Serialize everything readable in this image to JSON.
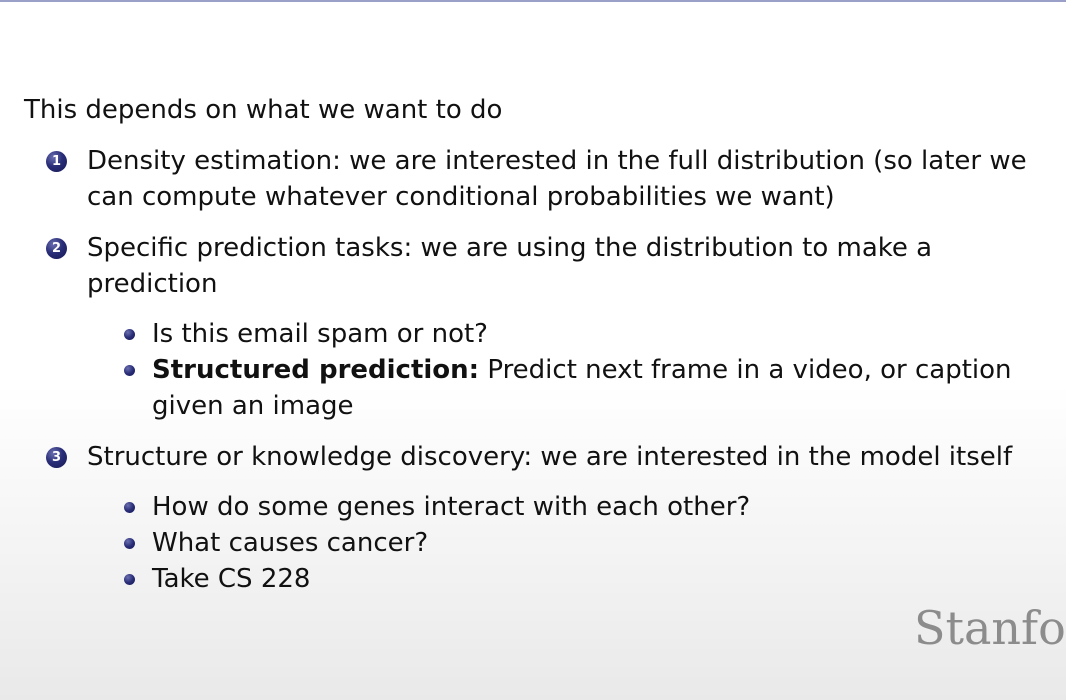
{
  "slide": {
    "intro": "This depends on what we want to do",
    "items": [
      {
        "number": "1",
        "text": "Density estimation: we are interested in the full distribution (so later we can compute whatever conditional probabilities we want)"
      },
      {
        "number": "2",
        "text": "Specific prediction tasks: we are using the distribution to make a prediction",
        "subitems": [
          {
            "text": "Is this email spam or not?"
          },
          {
            "bold": "Structured prediction:",
            "text": "Predict next frame in a video, or caption given an image"
          }
        ]
      },
      {
        "number": "3",
        "text": "Structure or knowledge discovery: we are interested in the model itself",
        "subitems": [
          {
            "text": "How do some genes interact with each other?"
          },
          {
            "text": "What causes cancer?"
          },
          {
            "text": "Take CS 228"
          }
        ]
      }
    ]
  },
  "logo": {
    "text": "Stanfor"
  },
  "colors": {
    "bullet": "#2a2e78",
    "logo": "#8c8c8c",
    "top_rule": "#9aa0c8"
  }
}
